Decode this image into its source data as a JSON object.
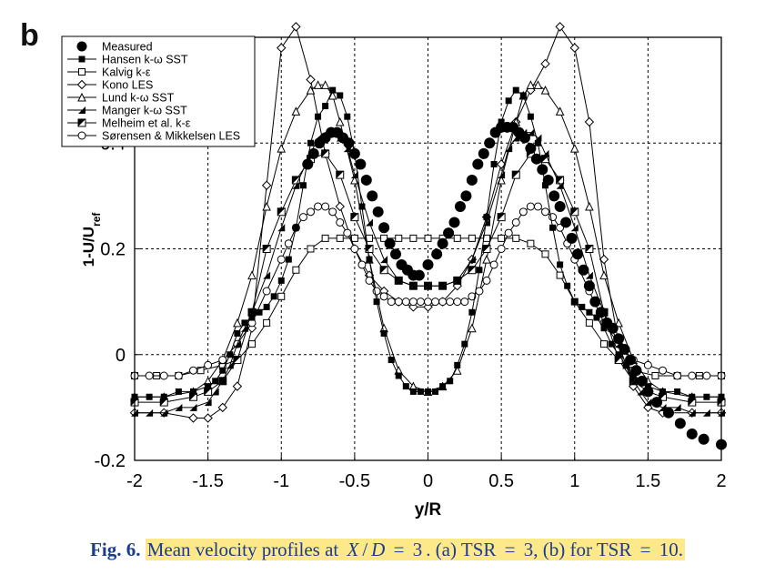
{
  "panel_label": "b",
  "caption": {
    "fig_label": "Fig. 6.",
    "text_parts": [
      "Mean velocity profiles at ",
      "X",
      "/",
      "D",
      " = ",
      "3",
      ". (a) TSR ",
      "=",
      " 3, (b) for TSR ",
      "=",
      " 10."
    ]
  },
  "chart_data": {
    "type": "line",
    "xlabel": "y/R",
    "ylabel_main": "1-U/U",
    "ylabel_sub": "ref",
    "xlim": [
      -2,
      2
    ],
    "ylim": [
      -0.2,
      0.6
    ],
    "xticks": [
      -2,
      -1.5,
      -1,
      -0.5,
      0,
      0.5,
      1,
      1.5,
      2
    ],
    "xtick_labels": [
      "-2",
      "-1.5",
      "-1",
      "-0.5",
      "0",
      "0.5",
      "1",
      "1.5",
      "2"
    ],
    "yticks": [
      -0.2,
      0,
      0.2,
      0.4
    ],
    "ytick_labels": [
      "-0.2",
      "0",
      "0.2",
      "0.4"
    ],
    "grid": true,
    "legend_position": "top-left",
    "series": [
      {
        "name": "Measured",
        "marker": "filled-circle",
        "line": false,
        "x": [
          -0.82,
          -0.78,
          -0.74,
          -0.7,
          -0.66,
          -0.62,
          -0.58,
          -0.54,
          -0.5,
          -0.46,
          -0.42,
          -0.38,
          -0.34,
          -0.3,
          -0.26,
          -0.22,
          -0.18,
          -0.14,
          -0.1,
          -0.06,
          0.0,
          0.06,
          0.1,
          0.14,
          0.18,
          0.22,
          0.26,
          0.3,
          0.34,
          0.38,
          0.42,
          0.46,
          0.5,
          0.54,
          0.58,
          0.62,
          0.66,
          0.7,
          0.74,
          0.78,
          0.82,
          0.86,
          0.9,
          0.94,
          0.98,
          1.02,
          1.06,
          1.1,
          1.14,
          1.18,
          1.22,
          1.26,
          1.3,
          1.34,
          1.38,
          1.42,
          1.46,
          1.5,
          1.56,
          1.64,
          1.72,
          1.8,
          1.88,
          2.0
        ],
        "y": [
          0.36,
          0.38,
          0.4,
          0.41,
          0.42,
          0.42,
          0.41,
          0.4,
          0.38,
          0.36,
          0.33,
          0.3,
          0.27,
          0.24,
          0.21,
          0.19,
          0.17,
          0.16,
          0.15,
          0.15,
          0.17,
          0.19,
          0.21,
          0.23,
          0.25,
          0.28,
          0.3,
          0.33,
          0.36,
          0.38,
          0.4,
          0.42,
          0.43,
          0.43,
          0.43,
          0.42,
          0.41,
          0.39,
          0.37,
          0.35,
          0.33,
          0.3,
          0.28,
          0.25,
          0.22,
          0.19,
          0.16,
          0.13,
          0.1,
          0.08,
          0.06,
          0.05,
          0.03,
          0.01,
          -0.01,
          -0.03,
          -0.05,
          -0.07,
          -0.09,
          -0.11,
          -0.13,
          -0.15,
          -0.16,
          -0.17
        ]
      },
      {
        "name": "Hansen k-ω SST",
        "marker": "filled-square",
        "line": true,
        "x": [
          -2.0,
          -1.9,
          -1.8,
          -1.7,
          -1.6,
          -1.5,
          -1.45,
          -1.4,
          -1.35,
          -1.3,
          -1.25,
          -1.2,
          -1.15,
          -1.1,
          -1.05,
          -1.0,
          -0.95,
          -0.9,
          -0.85,
          -0.8,
          -0.75,
          -0.7,
          -0.65,
          -0.6,
          -0.55,
          -0.5,
          -0.45,
          -0.4,
          -0.35,
          -0.3,
          -0.25,
          -0.2,
          -0.15,
          -0.1,
          -0.05,
          0.0,
          0.05,
          0.1,
          0.15,
          0.2,
          0.25,
          0.3,
          0.35,
          0.4,
          0.45,
          0.5,
          0.55,
          0.6,
          0.65,
          0.7,
          0.75,
          0.8,
          0.85,
          0.9,
          0.95,
          1.0,
          1.05,
          1.1,
          1.15,
          1.2,
          1.25,
          1.3,
          1.35,
          1.4,
          1.45,
          1.5,
          1.6,
          1.7,
          1.8,
          1.9,
          2.0
        ],
        "y": [
          -0.08,
          -0.08,
          -0.08,
          -0.07,
          -0.07,
          -0.06,
          -0.05,
          -0.03,
          0.0,
          0.04,
          0.06,
          0.07,
          0.08,
          0.09,
          0.11,
          0.14,
          0.18,
          0.24,
          0.32,
          0.4,
          0.45,
          0.47,
          0.5,
          0.49,
          0.45,
          0.38,
          0.28,
          0.18,
          0.1,
          0.04,
          -0.01,
          -0.04,
          -0.06,
          -0.07,
          -0.07,
          -0.07,
          -0.07,
          -0.06,
          -0.05,
          -0.02,
          0.02,
          0.08,
          0.16,
          0.26,
          0.36,
          0.44,
          0.48,
          0.5,
          0.49,
          0.45,
          0.4,
          0.32,
          0.24,
          0.17,
          0.13,
          0.1,
          0.09,
          0.08,
          0.07,
          0.05,
          0.02,
          0.0,
          -0.02,
          -0.04,
          -0.05,
          -0.06,
          -0.07,
          -0.07,
          -0.08,
          -0.08,
          -0.08
        ]
      },
      {
        "name": "Kalvig k-ε",
        "marker": "open-square",
        "line": true,
        "x": [
          -2.0,
          -1.85,
          -1.7,
          -1.55,
          -1.4,
          -1.3,
          -1.2,
          -1.1,
          -1.0,
          -0.9,
          -0.8,
          -0.7,
          -0.6,
          -0.5,
          -0.4,
          -0.3,
          -0.2,
          -0.1,
          0.0,
          0.1,
          0.2,
          0.3,
          0.4,
          0.5,
          0.6,
          0.7,
          0.8,
          0.9,
          1.0,
          1.1,
          1.2,
          1.3,
          1.4,
          1.55,
          1.7,
          1.85,
          2.0
        ],
        "y": [
          -0.04,
          -0.04,
          -0.04,
          -0.03,
          -0.02,
          -0.01,
          0.02,
          0.06,
          0.11,
          0.16,
          0.2,
          0.22,
          0.22,
          0.22,
          0.22,
          0.22,
          0.22,
          0.22,
          0.22,
          0.22,
          0.22,
          0.22,
          0.22,
          0.22,
          0.22,
          0.21,
          0.19,
          0.15,
          0.1,
          0.06,
          0.02,
          -0.01,
          -0.03,
          -0.04,
          -0.04,
          -0.04,
          -0.04
        ]
      },
      {
        "name": "Kono LES",
        "marker": "open-diamond",
        "line": true,
        "x": [
          -2.0,
          -1.8,
          -1.6,
          -1.5,
          -1.4,
          -1.3,
          -1.2,
          -1.1,
          -1.0,
          -0.9,
          -0.8,
          -0.7,
          -0.6,
          -0.5,
          -0.4,
          -0.3,
          -0.2,
          -0.1,
          0.0,
          0.1,
          0.2,
          0.3,
          0.4,
          0.5,
          0.6,
          0.7,
          0.8,
          0.9,
          1.0,
          1.1,
          1.2,
          1.3,
          1.4,
          1.5,
          1.6,
          1.8,
          2.0
        ],
        "y": [
          -0.11,
          -0.11,
          -0.12,
          -0.12,
          -0.1,
          -0.06,
          0.05,
          0.32,
          0.58,
          0.62,
          0.52,
          0.38,
          0.28,
          0.2,
          0.15,
          0.12,
          0.1,
          0.09,
          0.09,
          0.1,
          0.13,
          0.18,
          0.26,
          0.36,
          0.44,
          0.5,
          0.55,
          0.62,
          0.58,
          0.44,
          0.18,
          0.02,
          -0.06,
          -0.1,
          -0.11,
          -0.11,
          -0.11
        ]
      },
      {
        "name": "Lund k-ω SST",
        "marker": "open-triangle",
        "line": true,
        "x": [
          -2.0,
          -1.8,
          -1.6,
          -1.5,
          -1.4,
          -1.3,
          -1.2,
          -1.1,
          -1.0,
          -0.9,
          -0.8,
          -0.75,
          -0.7,
          -0.65,
          -0.6,
          -0.5,
          -0.4,
          -0.3,
          -0.2,
          -0.1,
          0.0,
          0.1,
          0.2,
          0.3,
          0.4,
          0.5,
          0.6,
          0.65,
          0.7,
          0.75,
          0.8,
          0.9,
          1.0,
          1.1,
          1.2,
          1.3,
          1.4,
          1.5,
          1.6,
          1.8,
          2.0
        ],
        "y": [
          -0.08,
          -0.08,
          -0.07,
          -0.05,
          -0.01,
          0.06,
          0.15,
          0.28,
          0.39,
          0.46,
          0.5,
          0.51,
          0.51,
          0.49,
          0.44,
          0.33,
          0.18,
          0.05,
          -0.03,
          -0.06,
          -0.07,
          -0.06,
          -0.03,
          0.05,
          0.18,
          0.33,
          0.44,
          0.49,
          0.51,
          0.51,
          0.5,
          0.46,
          0.39,
          0.28,
          0.15,
          0.06,
          -0.01,
          -0.05,
          -0.07,
          -0.08,
          -0.08
        ]
      },
      {
        "name": "Manger k-ω SST",
        "marker": "filled-triangle",
        "line": true,
        "x": [
          -2.0,
          -1.9,
          -1.8,
          -1.7,
          -1.6,
          -1.5,
          -1.45,
          -1.4,
          -1.35,
          -1.3,
          -1.25,
          -1.2,
          -1.1,
          -1.0,
          -0.9,
          -0.8,
          -0.75,
          -0.7,
          -0.65,
          -0.6,
          -0.55,
          -0.5,
          -0.4,
          -0.3,
          -0.2,
          -0.1,
          0.0,
          0.1,
          0.2,
          0.3,
          0.4,
          0.5,
          0.55,
          0.6,
          0.65,
          0.7,
          0.75,
          0.8,
          0.9,
          1.0,
          1.1,
          1.2,
          1.25,
          1.3,
          1.35,
          1.4,
          1.45,
          1.5,
          1.6,
          1.7,
          1.8,
          1.9,
          2.0
        ],
        "y": [
          -0.11,
          -0.11,
          -0.11,
          -0.1,
          -0.1,
          -0.09,
          -0.07,
          -0.05,
          -0.02,
          0.02,
          0.05,
          0.08,
          0.15,
          0.24,
          0.32,
          0.38,
          0.41,
          0.42,
          0.42,
          0.41,
          0.39,
          0.34,
          0.25,
          0.18,
          0.14,
          0.13,
          0.13,
          0.13,
          0.14,
          0.18,
          0.25,
          0.34,
          0.39,
          0.41,
          0.42,
          0.42,
          0.41,
          0.38,
          0.32,
          0.24,
          0.15,
          0.08,
          0.05,
          0.02,
          -0.02,
          -0.05,
          -0.07,
          -0.09,
          -0.1,
          -0.1,
          -0.11,
          -0.11,
          -0.11
        ]
      },
      {
        "name": "Melheim et al. k-ε",
        "marker": "half-square",
        "line": true,
        "x": [
          -2.0,
          -1.8,
          -1.6,
          -1.5,
          -1.4,
          -1.3,
          -1.2,
          -1.1,
          -1.0,
          -0.9,
          -0.8,
          -0.7,
          -0.6,
          -0.5,
          -0.4,
          -0.3,
          -0.2,
          -0.1,
          0.0,
          0.1,
          0.2,
          0.3,
          0.4,
          0.5,
          0.6,
          0.7,
          0.8,
          0.9,
          1.0,
          1.1,
          1.2,
          1.3,
          1.4,
          1.5,
          1.6,
          1.8,
          2.0
        ],
        "y": [
          -0.09,
          -0.09,
          -0.08,
          -0.07,
          -0.05,
          -0.01,
          0.08,
          0.2,
          0.27,
          0.33,
          0.37,
          0.38,
          0.34,
          0.26,
          0.2,
          0.16,
          0.14,
          0.13,
          0.13,
          0.13,
          0.14,
          0.16,
          0.2,
          0.26,
          0.34,
          0.38,
          0.37,
          0.33,
          0.27,
          0.2,
          0.08,
          -0.01,
          -0.05,
          -0.07,
          -0.08,
          -0.09,
          -0.09
        ]
      },
      {
        "name": "Sørensen & Mikkelsen LES",
        "marker": "open-circle",
        "line": true,
        "x": [
          -2.0,
          -1.9,
          -1.8,
          -1.7,
          -1.6,
          -1.5,
          -1.4,
          -1.3,
          -1.2,
          -1.1,
          -1.0,
          -0.95,
          -0.9,
          -0.85,
          -0.8,
          -0.75,
          -0.7,
          -0.65,
          -0.6,
          -0.55,
          -0.5,
          -0.45,
          -0.4,
          -0.35,
          -0.3,
          -0.25,
          -0.2,
          -0.15,
          -0.1,
          -0.05,
          0.0,
          0.05,
          0.1,
          0.15,
          0.2,
          0.25,
          0.3,
          0.35,
          0.4,
          0.45,
          0.5,
          0.55,
          0.6,
          0.65,
          0.7,
          0.75,
          0.8,
          0.85,
          0.9,
          0.95,
          1.0,
          1.1,
          1.2,
          1.3,
          1.4,
          1.5,
          1.6,
          1.7,
          1.8,
          1.9,
          2.0
        ],
        "y": [
          -0.04,
          -0.04,
          -0.04,
          -0.04,
          -0.03,
          -0.02,
          -0.01,
          0.02,
          0.06,
          0.12,
          0.18,
          0.21,
          0.24,
          0.26,
          0.27,
          0.28,
          0.28,
          0.27,
          0.25,
          0.23,
          0.2,
          0.17,
          0.14,
          0.12,
          0.11,
          0.1,
          0.1,
          0.1,
          0.1,
          0.1,
          0.1,
          0.1,
          0.1,
          0.1,
          0.1,
          0.1,
          0.11,
          0.12,
          0.14,
          0.17,
          0.2,
          0.23,
          0.25,
          0.27,
          0.28,
          0.28,
          0.27,
          0.26,
          0.24,
          0.21,
          0.18,
          0.12,
          0.06,
          0.02,
          -0.01,
          -0.02,
          -0.03,
          -0.04,
          -0.04,
          -0.04,
          -0.04
        ]
      }
    ]
  }
}
